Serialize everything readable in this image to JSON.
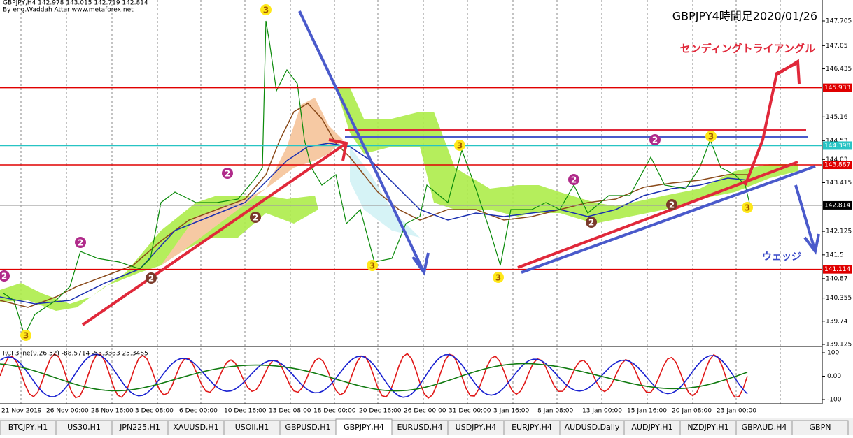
{
  "header": {
    "symbol_info": "GBPJPY,H4 142.978 143.015 142.719 142.814",
    "credit": "By eng.Waddah Attar www.metaforex.net",
    "title": "GBPJPY4時間足2020/01/26"
  },
  "annotations": {
    "triangle": "センディングトライアングル",
    "wedge": "ウェッジ"
  },
  "price_axis": {
    "ylim": [
      139.125,
      147.705
    ],
    "yticks": [
      147.705,
      147.05,
      146.435,
      145.16,
      144.53,
      144.03,
      143.415,
      142.125,
      141.5,
      140.87,
      140.355,
      139.74,
      139.125
    ]
  },
  "price_lines": [
    {
      "value": 145.933,
      "color": "#e00000"
    },
    {
      "value": 144.398,
      "color": "#27c4c4"
    },
    {
      "value": 143.887,
      "color": "#e00000"
    },
    {
      "value": 142.814,
      "color": "#a0a0a0"
    },
    {
      "value": 141.114,
      "color": "#e00000"
    }
  ],
  "wave_labels": [
    "3",
    "3",
    "3",
    "3",
    "3",
    "3",
    "3",
    "2",
    "2",
    "2",
    "2",
    "2",
    "2",
    "2",
    "2",
    "2"
  ],
  "indicator": {
    "label": "RCI 3line(9,26,52) -88.5714 -53.3333 25.3465",
    "ylim": [
      -100,
      100
    ],
    "yticks": [
      100,
      {
        "value": 0,
        "label": "0.00"
      },
      -100
    ]
  },
  "time_axis": [
    "21 Nov 2019",
    "26 Nov 00:00",
    "28 Nov 16:00",
    "3 Dec 08:00",
    "6 Dec 00:00",
    "10 Dec 16:00",
    "13 Dec 08:00",
    "18 Dec 00:00",
    "20 Dec 16:00",
    "26 Dec 00:00",
    "31 Dec 00:00",
    "3 Jan 16:00",
    "8 Jan 08:00",
    "13 Jan 00:00",
    "15 Jan 16:00",
    "20 Jan 08:00",
    "23 Jan 00:00"
  ],
  "tabs": [
    "BTCJPY,H1",
    "US30,H1",
    "JPN225,H1",
    "XAUUSD,H1",
    "USOil,H1",
    "GBPUSD,H1",
    "GBPJPY,H4",
    "EURUSD,H4",
    "USDJPY,H4",
    "EURJPY,H4",
    "AUDUSD,Daily",
    "AUDJPY,H1",
    "NZDJPY,H1",
    "GBPAUD,H4",
    "GBPN"
  ],
  "active_tab": 6
}
